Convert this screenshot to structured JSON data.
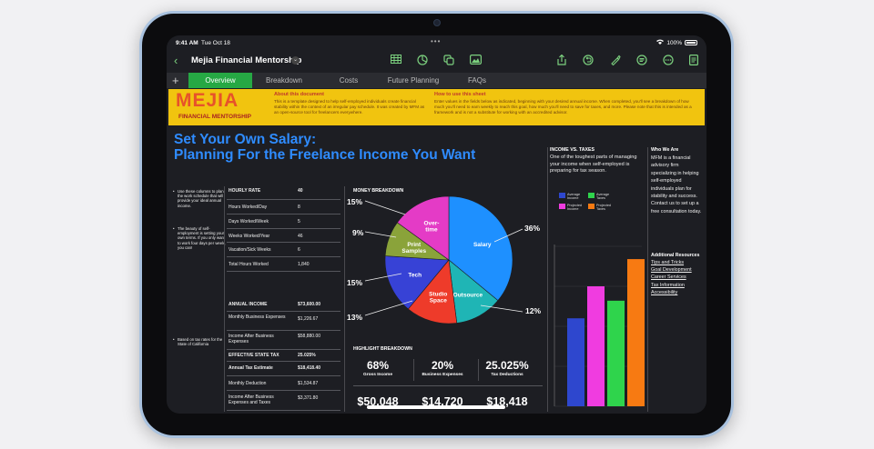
{
  "status_bar": {
    "time": "9:41 AM",
    "date": "Tue Oct 18",
    "battery": "100%"
  },
  "toolbar": {
    "title": "Mejia Financial Mentorship",
    "icons": [
      "table-icon",
      "chart-icon",
      "shapes-icon",
      "media-icon",
      "share-icon",
      "undo-icon",
      "brush-icon",
      "format-icon",
      "more-icon",
      "document-icon"
    ]
  },
  "tabs": [
    "Overview",
    "Breakdown",
    "Costs",
    "Future Planning",
    "FAQs"
  ],
  "active_tab": "Overview",
  "banner": {
    "logo": "MEJIA",
    "logo_sub": "FINANCIAL MENTORSHIP",
    "about_title": "About this document",
    "about_text": "This is a template designed to help self-employed individuals create financial stability within the context of an irregular pay schedule. It was created by MFM as an open-source tool for freelancers everywhere.",
    "howto_title": "How to use this sheet",
    "howto_text": "Enter values in the fields below as indicated, beginning with your desired annual income. When completed, you'll see a breakdown of how much you'll need to earn weekly to reach this goal, how much you'll need to save for taxes, and more. Please note that this is intended as a framework and is not a substitute for working with an accredited advisor."
  },
  "headline": {
    "line1": "Set Your Own Salary:",
    "line2": "Planning For the Freelance Income You Want"
  },
  "notes": [
    "Use these columns to plan the work schedule that will provide your ideal annual income.",
    "The beauty of self-employment is setting your own terms. If you only want to work four days per week, you can!",
    "Based on tax rates for the State of California"
  ],
  "hours_table": [
    {
      "label": "HOURLY RATE",
      "value": "40",
      "bold": true
    },
    {
      "label": "Hours Worked/Day",
      "value": "8"
    },
    {
      "label": "Days Worked/Week",
      "value": "5"
    },
    {
      "label": "Weeks Worked/Year",
      "value": "46"
    },
    {
      "label": "Vacation/Sick Weeks",
      "value": "6"
    },
    {
      "label": "Total Hours Worked",
      "value": "1,840"
    }
  ],
  "income_table": [
    {
      "label": "ANNUAL INCOME",
      "value": "$73,600.00",
      "bold": true
    },
    {
      "label": "Monthly Business Expenses",
      "value": "$1,226.67"
    },
    {
      "label": "Income After Business Expenses",
      "value": "$58,880.00"
    },
    {
      "label": "EFFECTIVE STATE TAX",
      "value": "25.025%",
      "bold": true
    },
    {
      "label": "Annual Tax Estimate",
      "value": "$18,418.40",
      "bold": true
    },
    {
      "label": "Monthly Deduction",
      "value": "$1,534.87"
    },
    {
      "label": "Income After Business Expenses and Taxes",
      "value": "$3,371.80"
    }
  ],
  "money_breakdown": {
    "title": "MONEY BREAKDOWN",
    "callouts": [
      "15%",
      "9%",
      "15%",
      "13%",
      "36%",
      "12%"
    ]
  },
  "chart_data": [
    {
      "type": "pie",
      "title": "MONEY BREAKDOWN",
      "slices": [
        {
          "label": "Salary",
          "value": 36,
          "color": "#1e90ff"
        },
        {
          "label": "Outsource",
          "value": 12,
          "color": "#1fb5b5"
        },
        {
          "label": "Studio Space",
          "value": 13,
          "color": "#ee3b2a"
        },
        {
          "label": "Tech",
          "value": 15,
          "color": "#3742d6"
        },
        {
          "label": "Print Samples",
          "value": 9,
          "color": "#8aa33a"
        },
        {
          "label": "Over-time",
          "value": 15,
          "color": "#e43bc6"
        }
      ]
    },
    {
      "type": "bar",
      "title": "INCOME VS. TAXES",
      "categories": [
        "Average Income",
        "Projected Income",
        "Average Taxes",
        "Projected Taxes"
      ],
      "values": [
        0.55,
        0.75,
        0.66,
        0.92
      ],
      "colors": [
        "#2e47ce",
        "#f03ce0",
        "#2fd44c",
        "#f77a12"
      ],
      "grid": true
    }
  ],
  "highlight": {
    "title": "HIGHLIGHT BREAKDOWN",
    "items": [
      {
        "pct": "68%",
        "label": "Gross Income",
        "money": "$50,048"
      },
      {
        "pct": "20%",
        "label": "Business Expenses",
        "money": "$14,720"
      },
      {
        "pct": "25.025%",
        "label": "Tax Deductions",
        "money": "$18,418"
      }
    ]
  },
  "income_vs_taxes": {
    "title": "INCOME VS. TAXES",
    "desc": "One of the toughest parts of managing your income when self-employed is preparing for tax season.",
    "legend": [
      "Average Income",
      "Projected Income",
      "Average Taxes",
      "Projected Taxes"
    ]
  },
  "who_we_are": {
    "title": "Who We Are",
    "text": "MFM is a financial advisory firm specializing in helping self-employed individuals plan for stability and success. Contact us to set up a free consultation today."
  },
  "resources": {
    "title": "Additional Resources",
    "links": [
      "Tips and Tricks",
      "Goal Development",
      "Career Services",
      "Tax Information",
      "Accessibility"
    ]
  }
}
